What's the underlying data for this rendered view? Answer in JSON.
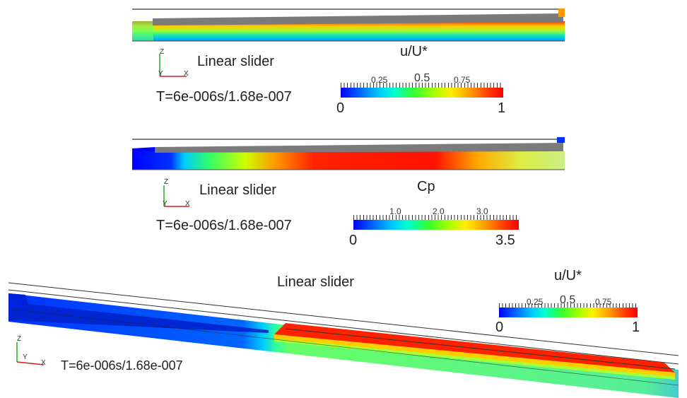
{
  "panel1": {
    "label": "Linear slider",
    "time": "T=6e-006s/1.68e-007",
    "colorbar": {
      "title": "u/U*",
      "min": "0",
      "max": "1",
      "ticks": [
        "0.25",
        "0.5",
        "0.75"
      ]
    },
    "axes": {
      "z": "Z",
      "y": "Y",
      "x": "X"
    }
  },
  "panel2": {
    "label": "Linear slider",
    "time": "T=6e-006s/1.68e-007",
    "colorbar": {
      "title": "Cp",
      "min": "0",
      "max": "3.5",
      "ticks": [
        "1.0",
        "2.0",
        "3.0"
      ]
    },
    "axes": {
      "z": "Z",
      "y": "Y",
      "x": "X"
    }
  },
  "panel3": {
    "label": "Linear slider",
    "time": "T=6e-006s/1.68e-007",
    "colorbar": {
      "title": "u/U*",
      "min": "0",
      "max": "1",
      "ticks": [
        "0.25",
        "0.5",
        "0.75"
      ]
    },
    "axes": {
      "z": "Z",
      "y": "Y",
      "x": "X"
    }
  }
}
